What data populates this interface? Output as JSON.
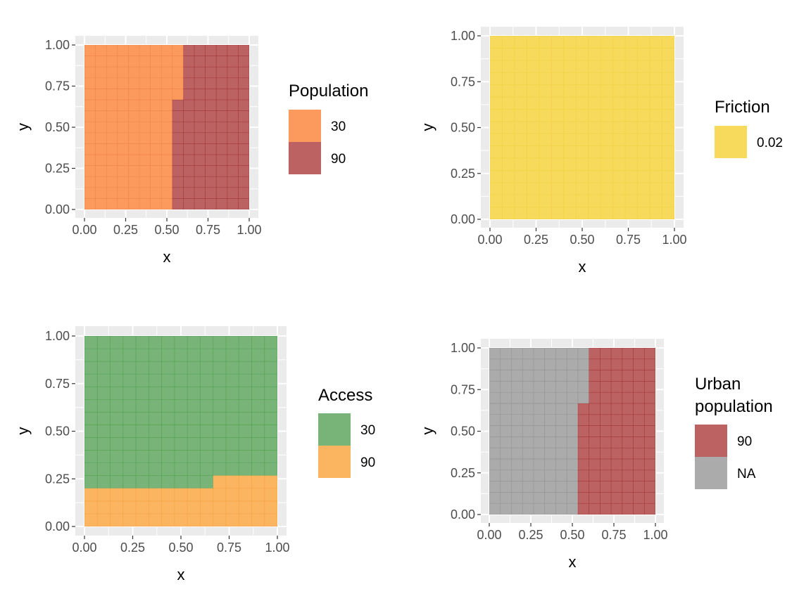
{
  "chart_data": [
    {
      "id": "population",
      "type": "heatmap",
      "xlabel": "x",
      "ylabel": "y",
      "xlim": [
        0,
        1
      ],
      "ylim": [
        0,
        1
      ],
      "ticks": [
        "0.00",
        "0.25",
        "0.50",
        "0.75",
        "1.00"
      ],
      "tick_values": [
        0,
        0.25,
        0.5,
        0.75,
        1
      ],
      "grid": 15,
      "legend": {
        "title": [
          "Population"
        ],
        "entries": [
          {
            "label": "30",
            "color": "#fc9a5e"
          },
          {
            "label": "90",
            "color": "#bd6262"
          }
        ]
      },
      "regions": [
        {
          "label": "30",
          "color": "#fc9a5e",
          "cell_color": "#e8793a",
          "polygon": [
            [
              0,
              0
            ],
            [
              0.533,
              0
            ],
            [
              0.533,
              0.667
            ],
            [
              0.6,
              0.667
            ],
            [
              0.6,
              1
            ],
            [
              0,
              1
            ]
          ]
        },
        {
          "label": "90",
          "color": "#bd6262",
          "cell_color": "#8f1d1d",
          "polygon": [
            [
              0.533,
              0
            ],
            [
              1,
              0
            ],
            [
              1,
              1
            ],
            [
              0.6,
              1
            ],
            [
              0.6,
              0.667
            ],
            [
              0.533,
              0.667
            ]
          ]
        }
      ]
    },
    {
      "id": "friction",
      "type": "heatmap",
      "xlabel": "x",
      "ylabel": "y",
      "xlim": [
        0,
        1
      ],
      "ylim": [
        0,
        1
      ],
      "ticks": [
        "0.00",
        "0.25",
        "0.50",
        "0.75",
        "1.00"
      ],
      "tick_values": [
        0,
        0.25,
        0.5,
        0.75,
        1
      ],
      "grid": 15,
      "legend": {
        "title": [
          "Friction"
        ],
        "entries": [
          {
            "label": "0.02",
            "color": "#f7d95c"
          }
        ]
      },
      "regions": [
        {
          "label": "0.02",
          "color": "#f7d95c",
          "cell_color": "#efcc30",
          "polygon": [
            [
              0,
              0
            ],
            [
              1,
              0
            ],
            [
              1,
              1
            ],
            [
              0,
              1
            ]
          ]
        }
      ]
    },
    {
      "id": "access",
      "type": "heatmap",
      "xlabel": "x",
      "ylabel": "y",
      "xlim": [
        0,
        1
      ],
      "ylim": [
        0,
        1
      ],
      "ticks": [
        "0.00",
        "0.25",
        "0.50",
        "0.75",
        "1.00"
      ],
      "tick_values": [
        0,
        0.25,
        0.5,
        0.75,
        1
      ],
      "grid": 15,
      "legend": {
        "title": [
          "Access"
        ],
        "entries": [
          {
            "label": "30",
            "color": "#78b378"
          },
          {
            "label": "90",
            "color": "#fbb460"
          }
        ]
      },
      "regions": [
        {
          "label": "30",
          "color": "#78b378",
          "cell_color": "#3d9a3d",
          "polygon": [
            [
              0,
              0.2
            ],
            [
              0.667,
              0.2
            ],
            [
              0.667,
              0.267
            ],
            [
              1,
              0.267
            ],
            [
              1,
              1
            ],
            [
              0,
              1
            ]
          ]
        },
        {
          "label": "90",
          "color": "#fbb460",
          "cell_color": "#f29a30",
          "polygon": [
            [
              0,
              0
            ],
            [
              1,
              0
            ],
            [
              1,
              0.267
            ],
            [
              0.667,
              0.267
            ],
            [
              0.667,
              0.2
            ],
            [
              0,
              0.2
            ]
          ]
        }
      ]
    },
    {
      "id": "urban",
      "type": "heatmap",
      "xlabel": "x",
      "ylabel": "y",
      "xlim": [
        0,
        1
      ],
      "ylim": [
        0,
        1
      ],
      "ticks": [
        "0.00",
        "0.25",
        "0.50",
        "0.75",
        "1.00"
      ],
      "tick_values": [
        0,
        0.25,
        0.5,
        0.75,
        1
      ],
      "grid": 15,
      "legend": {
        "title": [
          "Urban",
          "population"
        ],
        "entries": [
          {
            "label": "90",
            "color": "#bd6262"
          },
          {
            "label": "NA",
            "color": "#ababab"
          }
        ]
      },
      "regions": [
        {
          "label": "NA",
          "color": "#ababab",
          "cell_color": "#858585",
          "polygon": [
            [
              0,
              0
            ],
            [
              0.533,
              0
            ],
            [
              0.533,
              0.667
            ],
            [
              0.6,
              0.667
            ],
            [
              0.6,
              1
            ],
            [
              0,
              1
            ]
          ]
        },
        {
          "label": "90",
          "color": "#bd6262",
          "cell_color": "#8f1d1d",
          "polygon": [
            [
              0.533,
              0
            ],
            [
              1,
              0
            ],
            [
              1,
              1
            ],
            [
              0.6,
              1
            ],
            [
              0.6,
              0.667
            ],
            [
              0.533,
              0.667
            ]
          ]
        }
      ]
    }
  ]
}
